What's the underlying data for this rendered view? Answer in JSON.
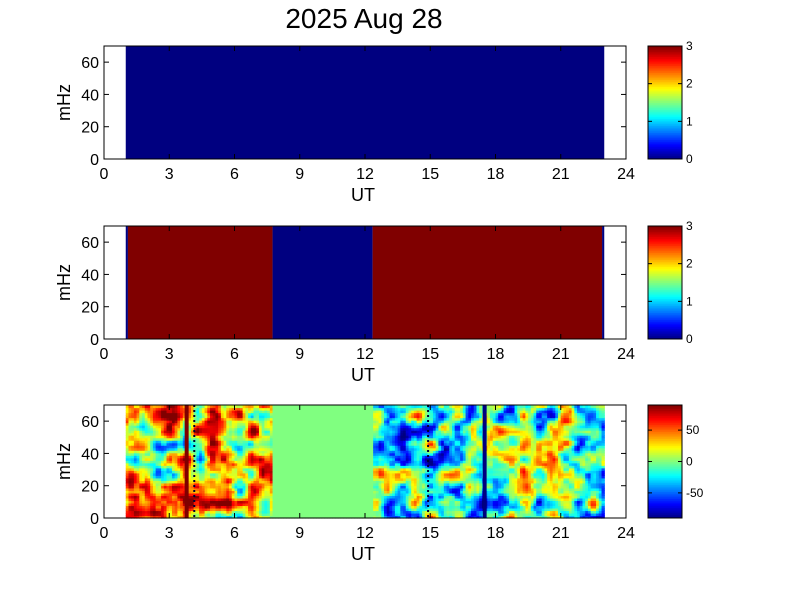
{
  "chart_data": [
    {
      "type": "heatmap",
      "title": "2025 Aug 28",
      "xlabel": "UT",
      "ylabel": "mHz",
      "xlim": [
        0,
        24
      ],
      "ylim": [
        0,
        70
      ],
      "xticks": [
        0,
        3,
        6,
        9,
        12,
        15,
        18,
        21,
        24
      ],
      "yticks": [
        0,
        20,
        40,
        60
      ],
      "clim": [
        0,
        3
      ],
      "colorbar_ticks": [
        0,
        1,
        2,
        3
      ],
      "colormap": "jet",
      "data_extent_x": [
        1.0,
        23.0
      ],
      "segments": [
        {
          "x0": 1.0,
          "x1": 23.0,
          "value": 0
        }
      ]
    },
    {
      "type": "heatmap",
      "title": "",
      "xlabel": "UT",
      "ylabel": "mHz",
      "xlim": [
        0,
        24
      ],
      "ylim": [
        0,
        70
      ],
      "xticks": [
        0,
        3,
        6,
        9,
        12,
        15,
        18,
        21,
        24
      ],
      "yticks": [
        0,
        20,
        40,
        60
      ],
      "clim": [
        0,
        3
      ],
      "colorbar_ticks": [
        0,
        1,
        2,
        3
      ],
      "colormap": "jet",
      "data_extent_x": [
        1.0,
        23.0
      ],
      "segments": [
        {
          "x0": 1.0,
          "x1": 1.1,
          "value": 0
        },
        {
          "x0": 1.1,
          "x1": 7.75,
          "value": 3
        },
        {
          "x0": 7.75,
          "x1": 12.35,
          "value": 0
        },
        {
          "x0": 12.35,
          "x1": 22.9,
          "value": 3
        },
        {
          "x0": 22.9,
          "x1": 23.0,
          "value": 0
        }
      ]
    },
    {
      "type": "heatmap",
      "title": "",
      "xlabel": "UT",
      "ylabel": "mHz",
      "xlim": [
        0,
        24
      ],
      "ylim": [
        0,
        70
      ],
      "xticks": [
        0,
        3,
        6,
        9,
        12,
        15,
        18,
        21,
        24
      ],
      "yticks": [
        0,
        20,
        40,
        60
      ],
      "clim": [
        -90,
        90
      ],
      "colorbar_ticks": [
        -50,
        0,
        50
      ],
      "colormap": "jet",
      "data_extent_x": [
        1.0,
        23.0
      ],
      "flat_region": {
        "x0": 7.75,
        "x1": 12.35,
        "value": 0
      },
      "vertical_lines": [
        {
          "x": 3.8,
          "value": 90,
          "style": "solid"
        },
        {
          "x": 4.15,
          "value": -90,
          "style": "dotted"
        },
        {
          "x": 14.9,
          "value": -90,
          "style": "dotted"
        },
        {
          "x": 17.5,
          "value": -90,
          "style": "solid"
        }
      ]
    }
  ]
}
